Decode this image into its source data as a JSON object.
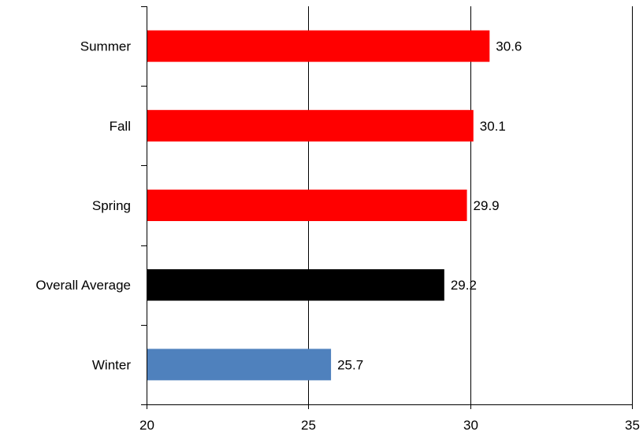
{
  "chart_data": {
    "type": "bar",
    "orientation": "horizontal",
    "categories": [
      "Summer",
      "Fall",
      "Spring",
      "Overall Average",
      "Winter"
    ],
    "values": [
      30.6,
      30.1,
      29.9,
      29.2,
      25.7
    ],
    "value_labels": [
      "30.6",
      "30.1",
      "29.9",
      "29.2",
      "25.7"
    ],
    "bar_colors": [
      "#ff0000",
      "#ff0000",
      "#ff0000",
      "#000000",
      "#4f81bd"
    ],
    "xlim": [
      20,
      35
    ],
    "x_ticks": [
      20,
      25,
      30,
      35
    ],
    "x_tick_labels": [
      "20",
      "25",
      "30",
      "35"
    ],
    "grid": "vertical",
    "legend": "none"
  }
}
